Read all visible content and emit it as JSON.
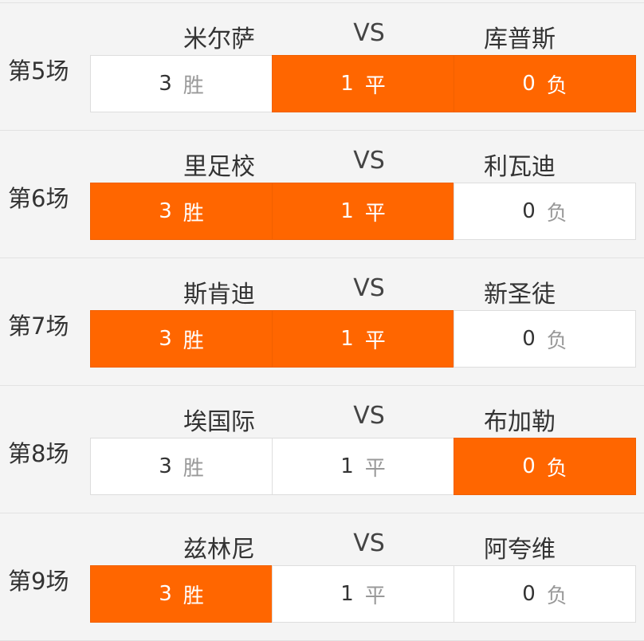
{
  "accent_color": "#ff6600",
  "vs_label": "VS",
  "matches": [
    {
      "label": "第5场",
      "home": "米尔萨",
      "away": "库普斯",
      "options": [
        {
          "num": "3",
          "res": "胜",
          "selected": false
        },
        {
          "num": "1",
          "res": "平",
          "selected": true
        },
        {
          "num": "0",
          "res": "负",
          "selected": true
        }
      ]
    },
    {
      "label": "第6场",
      "home": "里足校",
      "away": "利瓦迪",
      "options": [
        {
          "num": "3",
          "res": "胜",
          "selected": true
        },
        {
          "num": "1",
          "res": "平",
          "selected": true
        },
        {
          "num": "0",
          "res": "负",
          "selected": false
        }
      ]
    },
    {
      "label": "第7场",
      "home": "斯肯迪",
      "away": "新圣徒",
      "options": [
        {
          "num": "3",
          "res": "胜",
          "selected": true
        },
        {
          "num": "1",
          "res": "平",
          "selected": true
        },
        {
          "num": "0",
          "res": "负",
          "selected": false
        }
      ]
    },
    {
      "label": "第8场",
      "home": "埃国际",
      "away": "布加勒",
      "options": [
        {
          "num": "3",
          "res": "胜",
          "selected": false
        },
        {
          "num": "1",
          "res": "平",
          "selected": false
        },
        {
          "num": "0",
          "res": "负",
          "selected": true
        }
      ]
    },
    {
      "label": "第9场",
      "home": "兹林尼",
      "away": "阿夸维",
      "options": [
        {
          "num": "3",
          "res": "胜",
          "selected": true
        },
        {
          "num": "1",
          "res": "平",
          "selected": false
        },
        {
          "num": "0",
          "res": "负",
          "selected": false
        }
      ]
    }
  ]
}
